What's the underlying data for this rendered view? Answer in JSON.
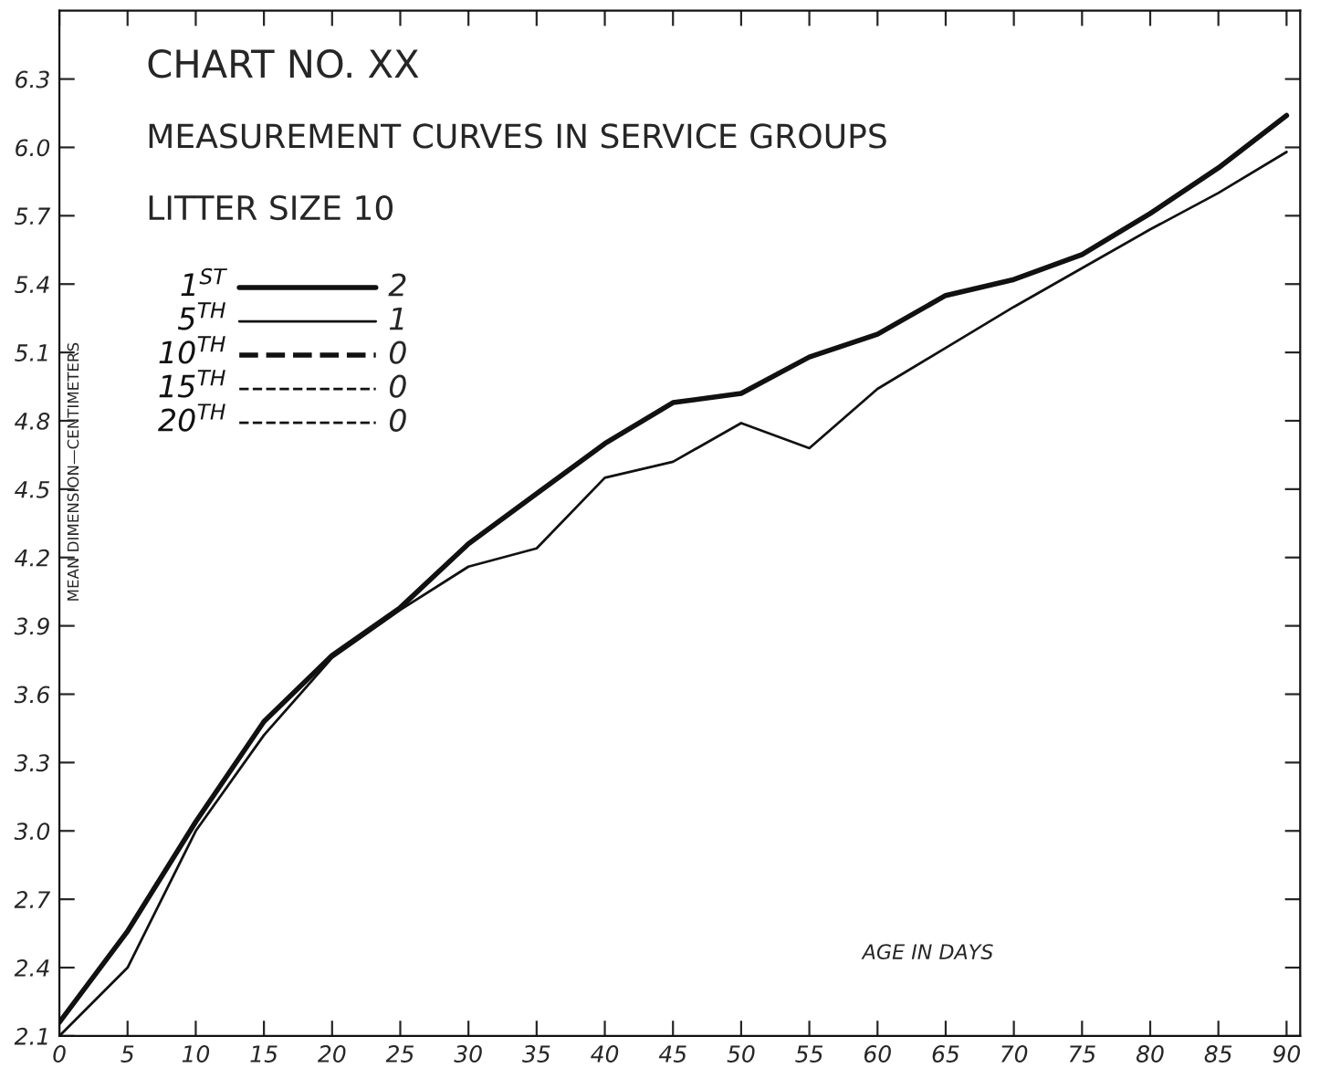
{
  "chart_data": {
    "type": "line",
    "title": "CHART NO. XX",
    "subtitle": "MEASUREMENT CURVES IN SERVICE GROUPS",
    "annotations": [
      "LITTER SIZE 10",
      "2",
      "1",
      "0",
      "0",
      "0"
    ],
    "xlabel": "AGE IN DAYS",
    "ylabel": "MEAN DIMENSION—CENTIMETERS",
    "x": [
      0,
      5,
      10,
      15,
      20,
      25,
      30,
      35,
      40,
      45,
      50,
      55,
      60,
      65,
      70,
      75,
      80,
      85,
      90
    ],
    "series": [
      {
        "name": "1$^{ST}$",
        "color": "#111111",
        "line_style": "solid",
        "values": [
          2.16,
          2.56,
          3.04,
          3.48,
          3.77,
          3.98,
          4.26,
          4.48,
          4.7,
          4.88,
          4.92,
          5.08,
          5.18,
          5.35,
          5.42,
          5.53,
          5.71,
          5.91,
          6.14
        ]
      },
      {
        "name": "5$^{TH}$",
        "color": "#111111",
        "line_style": "solid",
        "values": [
          2.1,
          2.4,
          3.0,
          3.42,
          3.76,
          3.97,
          4.16,
          4.24,
          4.55,
          4.62,
          4.79,
          4.68,
          4.94,
          5.12,
          5.3,
          5.47,
          5.64,
          5.8,
          5.98
        ]
      },
      {
        "name": "10$^{TH}$",
        "color": "#111111",
        "line_style": "dashed",
        "values": [
          null,
          null,
          null,
          null,
          null,
          null,
          null,
          null,
          null,
          null,
          null,
          null,
          null,
          null,
          null,
          null,
          null,
          null,
          null
        ]
      },
      {
        "name": "15$^{TH}$",
        "color": "#111111",
        "line_style": "dashed",
        "values": [
          null,
          null,
          null,
          null,
          null,
          null,
          null,
          null,
          null,
          null,
          null,
          null,
          null,
          null,
          null,
          null,
          null,
          null,
          null
        ]
      },
      {
        "name": "20$^{TH}$",
        "color": "#111111",
        "line_style": "dotted",
        "values": [
          null,
          null,
          null,
          null,
          null,
          null,
          null,
          null,
          null,
          null,
          null,
          null,
          null,
          null,
          null,
          null,
          null,
          null,
          null
        ]
      }
    ],
    "xlim": [
      0,
      91
    ],
    "xticks": [
      0,
      5,
      10,
      15,
      20,
      25,
      30,
      35,
      40,
      45,
      50,
      55,
      60,
      65,
      70,
      75,
      80,
      85,
      90
    ],
    "ylim": [
      2.1,
      6.6
    ],
    "yticks": [
      {
        "value": 2.1,
        "label": "2.1"
      },
      {
        "value": 2.4,
        "label": "2.4"
      },
      {
        "value": 2.7,
        "label": "2.7"
      },
      {
        "value": 3.0,
        "label": "3.0"
      },
      {
        "value": 3.3,
        "label": "3.3"
      },
      {
        "value": 3.6,
        "label": "3.6"
      },
      {
        "value": 3.9,
        "label": "3.9"
      },
      {
        "value": 4.2,
        "label": "4.2"
      },
      {
        "value": 4.5,
        "label": "4.5"
      },
      {
        "value": 4.8,
        "label": "4.8"
      },
      {
        "value": 5.1,
        "label": "5.1"
      },
      {
        "value": 5.4,
        "label": "5.4"
      },
      {
        "value": 5.7,
        "label": "5.7"
      },
      {
        "value": 6.0,
        "label": "6.0"
      },
      {
        "value": 6.3,
        "label": "6.3"
      }
    ],
    "legend": "top left",
    "grid": false,
    "marker": "none"
  }
}
